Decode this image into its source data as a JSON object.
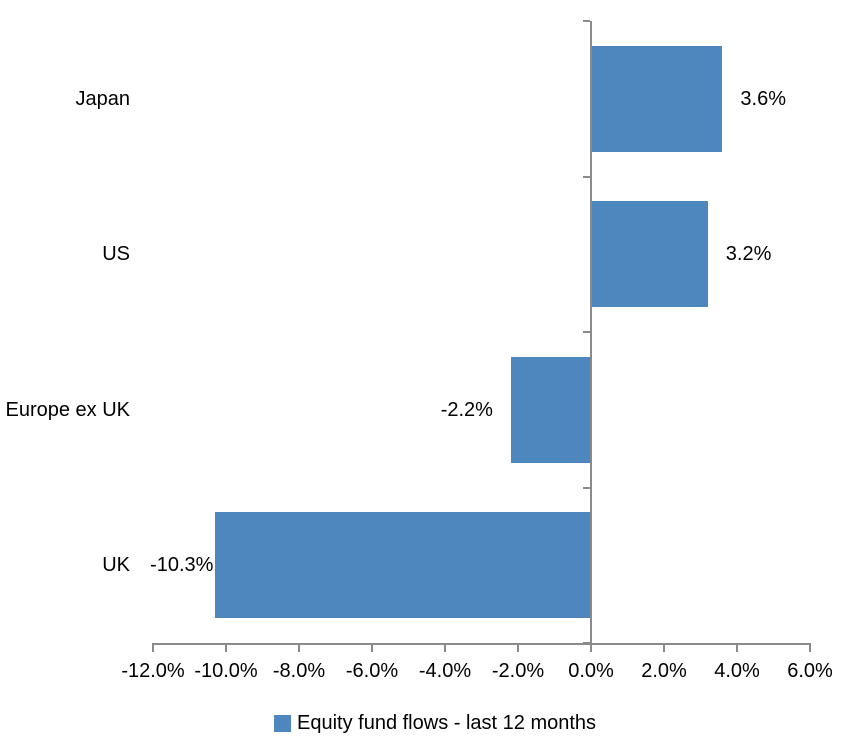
{
  "chart_data": {
    "type": "bar",
    "orientation": "horizontal",
    "title": "",
    "categories": [
      "Japan",
      "US",
      "Europe ex UK",
      "UK"
    ],
    "values": [
      3.6,
      3.2,
      -2.2,
      -10.3
    ],
    "value_labels": [
      "3.6%",
      "3.2%",
      "-2.2%",
      "-10.3%"
    ],
    "series_name": "Equity fund flows - last 12 months",
    "xlim": [
      -12,
      6
    ],
    "x_ticks": [
      {
        "value": -12,
        "label": "-12.0%"
      },
      {
        "value": -10,
        "label": "-10.0%"
      },
      {
        "value": -8,
        "label": "-8.0%"
      },
      {
        "value": -6,
        "label": "-6.0%"
      },
      {
        "value": -4,
        "label": "-4.0%"
      },
      {
        "value": -2,
        "label": "-2.0%"
      },
      {
        "value": 0,
        "label": "0.0%"
      },
      {
        "value": 2,
        "label": "2.0%"
      },
      {
        "value": 4,
        "label": "4.0%"
      },
      {
        "value": 6,
        "label": "6.0%"
      }
    ],
    "grid": "off",
    "legend_position": "bottom-center",
    "bar_color": "#4E87BE",
    "axis_color": "#8A8A8A",
    "text_color": "#000000"
  },
  "legend": {
    "label": "Equity fund flows - last 12 months"
  }
}
